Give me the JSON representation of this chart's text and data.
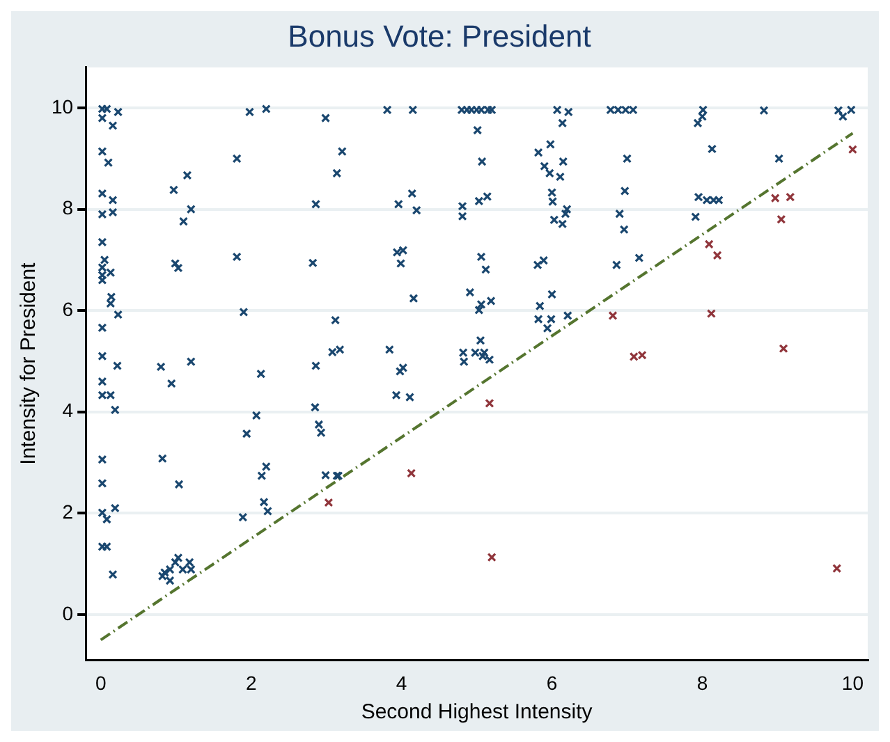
{
  "chart_data": {
    "type": "scatter",
    "title": "Bonus Vote: President",
    "xlabel": "Second Highest Intensity",
    "ylabel": "Intensity for President",
    "xlim": [
      -0.2,
      10.2
    ],
    "ylim": [
      -0.9,
      10.8
    ],
    "xticks": [
      0,
      2,
      4,
      6,
      8,
      10
    ],
    "yticks": [
      0,
      2,
      4,
      6,
      8,
      10
    ],
    "grid": "y",
    "legend": false,
    "series": [
      {
        "marker": "cross",
        "color": "#1a476f",
        "x": [
          0.02,
          0.08,
          0.02,
          0.23,
          0.16,
          0.02,
          0.1,
          0.02,
          0.16,
          0.02,
          0.16,
          0.02,
          0.05,
          0.02,
          0.13,
          0.02,
          0.02,
          0.14,
          0.13,
          0.23,
          0.02,
          0.02,
          0.22,
          1.98,
          2.2,
          2.99,
          3.21,
          1.81,
          3.14,
          1.15,
          0.97,
          2.86,
          1.2,
          1.1,
          1.81,
          0.99,
          1.03,
          2.82,
          1.9,
          3.12,
          0.8,
          1.2,
          3.08,
          3.18,
          2.86,
          2.13,
          3.81,
          4.15,
          4.8,
          4.87,
          4.93,
          5.0,
          5.06,
          5.15,
          5.2,
          5.01,
          6.07,
          6.22,
          6.14,
          5.82,
          5.98,
          5.07,
          5.9,
          5.97,
          6.15,
          6.11,
          4.14,
          3.96,
          4.2,
          4.81,
          4.81,
          5.03,
          5.14,
          6.0,
          6.01,
          6.03,
          6.18,
          6.14,
          6.2,
          3.94,
          4.02,
          3.99,
          5.06,
          5.12,
          5.81,
          5.89,
          4.16,
          4.91,
          5.06,
          5.19,
          5.03,
          6.0,
          5.84,
          5.82,
          5.99,
          5.94,
          6.21,
          3.84,
          4.02,
          3.98,
          5.05,
          4.82,
          4.83,
          4.98,
          5.1,
          5.17,
          5.08,
          6.78,
          6.88,
          6.98,
          7.08,
          8.01,
          8.0,
          7.94,
          8.82,
          9.81,
          9.87,
          9.98,
          7.0,
          8.13,
          9.02,
          6.97,
          7.95,
          8.06,
          8.15,
          8.22,
          6.9,
          6.96,
          7.91,
          6.86,
          7.16,
          0.02,
          0.02,
          0.13,
          0.19,
          0.94,
          2.07,
          1.94,
          2.85,
          2.9,
          2.93,
          0.02,
          0.82,
          1.04,
          0.02,
          0.02,
          0.08,
          0.19,
          0.02,
          0.08,
          0.16,
          0.85,
          0.92,
          0.99,
          1.03,
          1.09,
          1.18,
          1.2,
          0.92,
          0.82,
          2.14,
          2.2,
          2.17,
          2.22,
          1.89,
          2.99,
          3.14,
          3.16,
          3.93,
          4.11
        ],
        "values": [
          9.98,
          9.98,
          9.8,
          9.92,
          9.65,
          9.14,
          8.92,
          8.31,
          8.18,
          7.9,
          7.94,
          7.35,
          7.0,
          6.85,
          6.75,
          6.7,
          6.6,
          6.27,
          6.14,
          5.92,
          5.66,
          5.1,
          4.91,
          9.92,
          9.98,
          9.8,
          9.14,
          9.0,
          8.71,
          8.67,
          8.38,
          8.1,
          8.0,
          7.76,
          7.06,
          6.93,
          6.84,
          6.94,
          5.97,
          5.81,
          4.89,
          4.99,
          5.18,
          5.23,
          4.91,
          4.75,
          9.96,
          9.96,
          9.96,
          9.96,
          9.96,
          9.96,
          9.96,
          9.96,
          9.96,
          9.56,
          9.96,
          9.92,
          9.7,
          9.12,
          9.28,
          8.94,
          8.85,
          8.71,
          8.94,
          8.64,
          8.31,
          8.1,
          7.98,
          8.06,
          7.86,
          8.16,
          8.25,
          8.33,
          8.15,
          7.79,
          7.91,
          7.71,
          8.0,
          7.15,
          7.19,
          6.93,
          7.06,
          6.81,
          6.9,
          6.99,
          6.24,
          6.36,
          6.12,
          6.19,
          6.01,
          6.32,
          6.09,
          5.83,
          5.83,
          5.65,
          5.9,
          5.23,
          4.87,
          4.8,
          5.41,
          5.17,
          4.99,
          5.17,
          5.17,
          5.03,
          5.1,
          9.96,
          9.96,
          9.96,
          9.96,
          9.96,
          9.83,
          9.7,
          9.95,
          9.95,
          9.83,
          9.96,
          9.0,
          9.19,
          9.0,
          8.36,
          8.24,
          8.18,
          8.18,
          8.18,
          7.91,
          7.6,
          7.85,
          6.9,
          7.04,
          4.6,
          4.33,
          4.33,
          4.04,
          4.56,
          3.93,
          3.57,
          4.09,
          3.75,
          3.59,
          3.06,
          3.08,
          2.57,
          2.59,
          2.01,
          1.88,
          2.1,
          1.34,
          1.34,
          0.79,
          0.83,
          0.89,
          1.03,
          1.12,
          0.89,
          1.03,
          0.89,
          0.67,
          0.76,
          2.74,
          2.92,
          2.22,
          2.04,
          1.92,
          2.75,
          2.74,
          2.74,
          4.33,
          4.29
        ]
      },
      {
        "marker": "cross",
        "color": "#90353b",
        "x": [
          8.97,
          9.17,
          9.05,
          8.09,
          8.2,
          10.0,
          6.81,
          8.12,
          7.09,
          7.2,
          9.08,
          5.17,
          4.13,
          5.2,
          3.03,
          9.79
        ],
        "values": [
          8.22,
          8.24,
          7.8,
          7.31,
          7.09,
          9.18,
          5.9,
          5.94,
          5.09,
          5.12,
          5.25,
          4.17,
          2.79,
          1.13,
          2.21,
          0.91
        ]
      },
      {
        "type": "line",
        "marker": "none",
        "line_style": "dashed",
        "color": "#55752f",
        "x": [
          0,
          10
        ],
        "values": [
          -0.5,
          9.5
        ]
      }
    ]
  }
}
